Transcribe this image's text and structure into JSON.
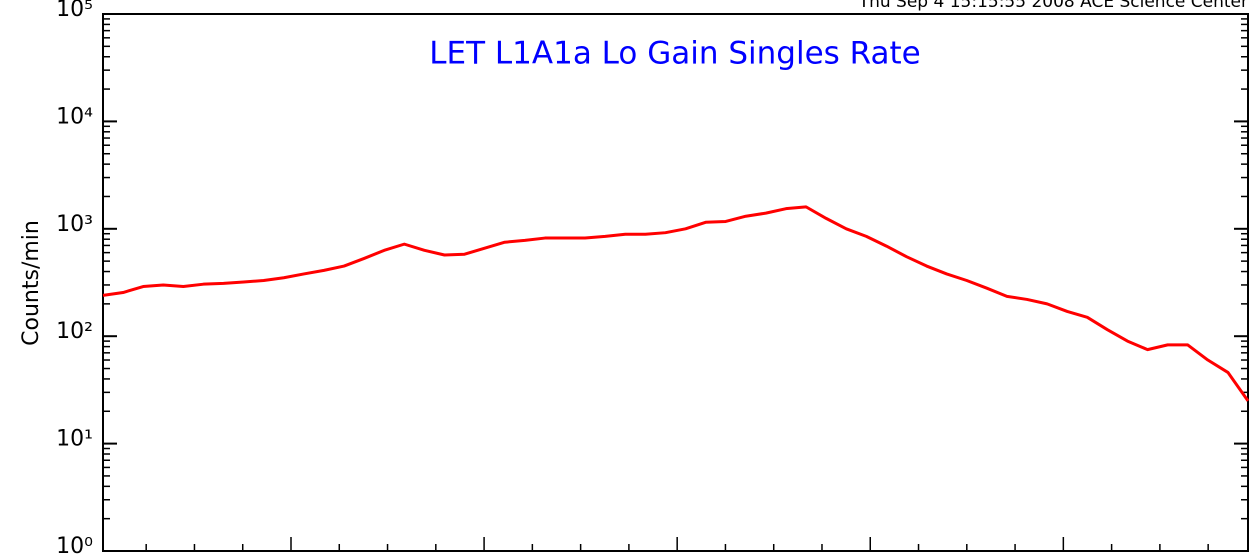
{
  "chart_data": {
    "type": "line",
    "title": "LET L1A1a Lo Gain Singles Rate",
    "subtitle": "Thu Sep  4 15:15:55 2008 ACE Science Center",
    "y_label": "Counts/min",
    "log_y": true,
    "categories": [
      null,
      null,
      null,
      null,
      null,
      null,
      null,
      null,
      null,
      null,
      null,
      null,
      null,
      null,
      null,
      null,
      null,
      null,
      null,
      null,
      null,
      null,
      null,
      null,
      null,
      null,
      null,
      null,
      null,
      null,
      null,
      null,
      null,
      null,
      null,
      null,
      null,
      null,
      null,
      null,
      null,
      null,
      null,
      null,
      null,
      null,
      null,
      null,
      null,
      null,
      null,
      null,
      null,
      null,
      null,
      null,
      null,
      null
    ],
    "series": [
      {
        "name": null,
        "color": "#ff0000",
        "values": [
          240,
          255,
          290,
          300,
          290,
          305,
          310,
          320,
          330,
          350,
          380,
          410,
          450,
          530,
          630,
          720,
          630,
          570,
          580,
          660,
          750,
          780,
          820,
          820,
          820,
          850,
          890,
          890,
          920,
          1000,
          1150,
          1170,
          1310,
          1400,
          1540,
          1600,
          1250,
          1000,
          850,
          690,
          550,
          450,
          380,
          330,
          280,
          235,
          220,
          200,
          170,
          150,
          115,
          90,
          75,
          83,
          83,
          60,
          46,
          25
        ]
      }
    ],
    "ylim": [
      1,
      100000
    ],
    "yticks": [
      {
        "value": 1,
        "label": "10⁰"
      },
      {
        "value": 10,
        "label": "10¹"
      },
      {
        "value": 100,
        "label": "10²"
      },
      {
        "value": 1000,
        "label": "10³"
      },
      {
        "value": 10000,
        "label": "10⁴"
      },
      {
        "value": 100000,
        "label": "10⁵"
      }
    ]
  }
}
